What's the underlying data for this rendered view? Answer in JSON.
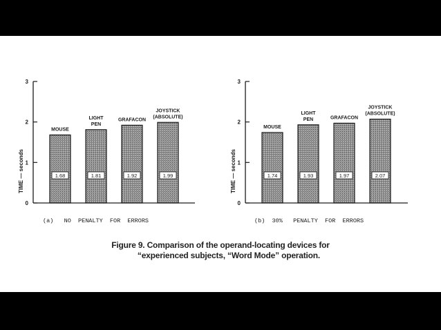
{
  "chart_data": [
    {
      "type": "bar",
      "categories": [
        "MOUSE",
        "LIGHT PEN",
        "GRAFACON",
        "JOYSTICK (ABSOLUTE)"
      ],
      "category_label_lines": [
        [
          "MOUSE"
        ],
        [
          "LIGHT",
          "PEN"
        ],
        [
          "GRAFACON"
        ],
        [
          "JOYSTICK",
          "(ABSOLUTE)"
        ]
      ],
      "values": [
        1.68,
        1.81,
        1.92,
        1.99
      ],
      "value_labels": [
        "1.68",
        "1.81",
        "1.92",
        "1.99"
      ],
      "ylabel": "TIME — seconds",
      "ylim": [
        0,
        3
      ],
      "yticks": [
        0,
        1,
        2,
        3
      ],
      "grid": false,
      "subtitle": "(a)   NO  PENALTY  FOR  ERRORS"
    },
    {
      "type": "bar",
      "categories": [
        "MOUSE",
        "LIGHT PEN",
        "GRAFACON",
        "JOYSTICK (ABSOLUTE)"
      ],
      "category_label_lines": [
        [
          "MOUSE"
        ],
        [
          "LIGHT",
          "PEN"
        ],
        [
          "GRAFACON"
        ],
        [
          "JOYSTICK",
          "(ABSOLUTE)"
        ]
      ],
      "values": [
        1.74,
        1.93,
        1.97,
        2.07
      ],
      "value_labels": [
        "1.74",
        "1.93",
        "1.97",
        "2.07"
      ],
      "ylabel": "TIME — seconds",
      "ylim": [
        0,
        3
      ],
      "yticks": [
        0,
        1,
        2,
        3
      ],
      "grid": false,
      "subtitle": "(b)  30%   PENALTY  FOR  ERRORS"
    }
  ],
  "caption": {
    "line1": "Figure 9.  Comparison of the operand-locating devices for",
    "line2": "“experienced subjects, “Word Mode” operation."
  },
  "colors": {
    "bar_fill": "#8e8e8e",
    "ink": "#1a1a1a",
    "background": "#ffffff",
    "frame": "#000000"
  }
}
